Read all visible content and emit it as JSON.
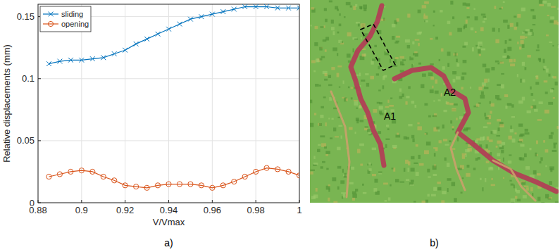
{
  "chart_data": {
    "type": "line",
    "panel_label": "a)",
    "x_label": "V/Vmax",
    "y_label": "Relative displacements (mm)",
    "x": [
      0.885,
      0.89,
      0.895,
      0.9,
      0.905,
      0.91,
      0.915,
      0.92,
      0.925,
      0.93,
      0.935,
      0.94,
      0.945,
      0.95,
      0.955,
      0.96,
      0.965,
      0.97,
      0.975,
      0.98,
      0.985,
      0.99,
      0.995,
      1.0
    ],
    "series": [
      {
        "name": "sliding",
        "color": "#0072bd",
        "marker": "x",
        "line_style": "solid",
        "values": [
          0.112,
          0.114,
          0.115,
          0.115,
          0.116,
          0.117,
          0.12,
          0.123,
          0.128,
          0.132,
          0.136,
          0.14,
          0.144,
          0.148,
          0.15,
          0.152,
          0.154,
          0.156,
          0.158,
          0.158,
          0.158,
          0.157,
          0.157,
          0.157
        ]
      },
      {
        "name": "opening",
        "color": "#d95319",
        "marker": "o",
        "line_style": "solid",
        "values": [
          0.021,
          0.023,
          0.025,
          0.026,
          0.025,
          0.021,
          0.018,
          0.014,
          0.013,
          0.012,
          0.014,
          0.015,
          0.015,
          0.015,
          0.014,
          0.012,
          0.014,
          0.017,
          0.021,
          0.025,
          0.028,
          0.027,
          0.025,
          0.022
        ]
      }
    ],
    "xlim": [
      0.88,
      1
    ],
    "ylim": [
      0,
      0.16
    ],
    "xticks": [
      0.88,
      0.9,
      0.92,
      0.94,
      0.96,
      0.98,
      1
    ],
    "yticks": [
      0,
      0.05,
      0.1,
      0.15
    ],
    "grid": true,
    "legend": "upper left"
  },
  "image_panel": {
    "panel_label": "b)",
    "labels": [
      "A1",
      "A2"
    ]
  }
}
